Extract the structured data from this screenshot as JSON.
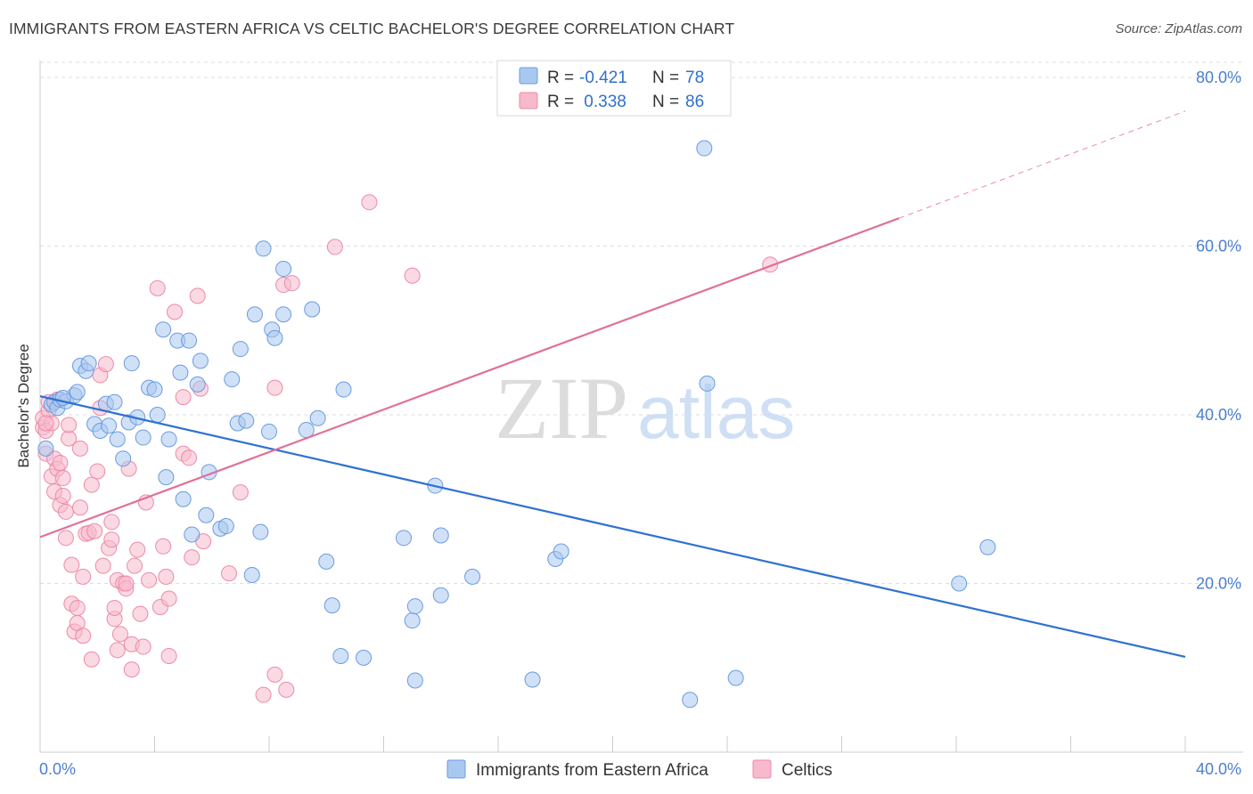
{
  "header": {
    "title": "IMMIGRANTS FROM EASTERN AFRICA VS CELTIC BACHELOR'S DEGREE CORRELATION CHART",
    "source": "Source: ZipAtlas.com"
  },
  "watermark": {
    "zip": "ZIP",
    "atlas": "atlas"
  },
  "colors": {
    "blue_fill": "#a9c8f0",
    "blue_stroke": "#6b9be0",
    "blue_line": "#2f72d0",
    "pink_fill": "#f7b9cc",
    "pink_stroke": "#ec8aa8",
    "pink_line": "#e0709a",
    "grid": "#dddddd",
    "tick_text": "#4a7fd0"
  },
  "legend_top": {
    "rows": [
      {
        "r_label": "R = ",
        "r_value": "-0.421",
        "n_label": "N = ",
        "n_value": "78"
      },
      {
        "r_label": "R = ",
        "r_value": " 0.338",
        "n_label": "N = ",
        "n_value": "86"
      }
    ]
  },
  "chart_data": {
    "type": "scatter",
    "title": "IMMIGRANTS FROM EASTERN AFRICA VS CELTIC BACHELOR'S DEGREE CORRELATION CHART",
    "xlabel": "",
    "ylabel": "Bachelor's Degree",
    "xlim": [
      0,
      40
    ],
    "ylim": [
      0,
      82
    ],
    "x_tick_labels": [
      "0.0%",
      "40.0%"
    ],
    "y_ticks": [
      20,
      40,
      60,
      80
    ],
    "y_tick_labels": [
      "20.0%",
      "40.0%",
      "60.0%",
      "80.0%"
    ],
    "grid": true,
    "legend_placement": "top-center",
    "series": [
      {
        "name": "Immigrants from Eastern Africa",
        "r": -0.421,
        "n": 78,
        "trend": {
          "x": [
            0,
            40
          ],
          "y": [
            42.2,
            11.3
          ]
        },
        "points": [
          [
            0.2,
            36.0
          ],
          [
            0.4,
            41.2
          ],
          [
            0.5,
            41.5
          ],
          [
            0.6,
            40.8
          ],
          [
            0.7,
            41.8
          ],
          [
            0.9,
            41.6
          ],
          [
            1.2,
            42.3
          ],
          [
            1.3,
            42.7
          ],
          [
            1.4,
            45.8
          ],
          [
            1.6,
            45.2
          ],
          [
            1.7,
            46.1
          ],
          [
            1.9,
            38.9
          ],
          [
            2.1,
            38.1
          ],
          [
            2.3,
            41.3
          ],
          [
            2.4,
            38.7
          ],
          [
            2.6,
            41.5
          ],
          [
            2.7,
            37.1
          ],
          [
            2.9,
            34.8
          ],
          [
            3.1,
            39.1
          ],
          [
            3.2,
            46.1
          ],
          [
            3.4,
            39.7
          ],
          [
            3.6,
            37.3
          ],
          [
            3.8,
            43.2
          ],
          [
            4.0,
            43.0
          ],
          [
            4.1,
            40.0
          ],
          [
            4.3,
            50.1
          ],
          [
            4.4,
            32.6
          ],
          [
            4.5,
            37.1
          ],
          [
            4.8,
            48.8
          ],
          [
            4.9,
            45.0
          ],
          [
            5.0,
            30.0
          ],
          [
            5.2,
            48.8
          ],
          [
            5.3,
            25.8
          ],
          [
            5.5,
            43.6
          ],
          [
            5.6,
            46.4
          ],
          [
            5.8,
            28.1
          ],
          [
            5.9,
            33.2
          ],
          [
            6.3,
            26.5
          ],
          [
            6.5,
            26.8
          ],
          [
            6.7,
            44.2
          ],
          [
            6.9,
            39.0
          ],
          [
            7.0,
            47.8
          ],
          [
            7.2,
            39.3
          ],
          [
            7.4,
            21.0
          ],
          [
            7.5,
            51.9
          ],
          [
            7.7,
            26.1
          ],
          [
            7.8,
            59.7
          ],
          [
            8.0,
            38.0
          ],
          [
            8.1,
            50.1
          ],
          [
            8.2,
            49.1
          ],
          [
            8.5,
            51.9
          ],
          [
            8.5,
            57.3
          ],
          [
            9.3,
            38.2
          ],
          [
            9.5,
            52.5
          ],
          [
            9.7,
            39.6
          ],
          [
            10.0,
            22.6
          ],
          [
            10.2,
            17.4
          ],
          [
            10.5,
            11.4
          ],
          [
            10.6,
            43.0
          ],
          [
            11.3,
            11.2
          ],
          [
            12.7,
            25.4
          ],
          [
            13.0,
            15.6
          ],
          [
            13.1,
            17.3
          ],
          [
            13.1,
            8.5
          ],
          [
            13.8,
            31.6
          ],
          [
            14.0,
            25.7
          ],
          [
            14.0,
            18.6
          ],
          [
            15.1,
            20.8
          ],
          [
            17.2,
            8.6
          ],
          [
            18.0,
            22.9
          ],
          [
            18.2,
            23.8
          ],
          [
            22.7,
            6.2
          ],
          [
            23.2,
            71.6
          ],
          [
            23.3,
            43.7
          ],
          [
            24.3,
            8.8
          ],
          [
            32.1,
            20.0
          ],
          [
            33.1,
            24.3
          ],
          [
            0.8,
            42.0
          ]
        ]
      },
      {
        "name": "Celtics",
        "r": 0.338,
        "n": 86,
        "trend": {
          "x": [
            0,
            30
          ],
          "y": [
            25.5,
            63.3
          ]
        },
        "trend_dashed": {
          "x": [
            30,
            40
          ],
          "y": [
            63.3,
            76.0
          ]
        },
        "points": [
          [
            0.1,
            38.5
          ],
          [
            0.1,
            39.6
          ],
          [
            0.2,
            35.4
          ],
          [
            0.2,
            38.1
          ],
          [
            0.3,
            40.5
          ],
          [
            0.3,
            41.5
          ],
          [
            0.4,
            32.7
          ],
          [
            0.4,
            39.0
          ],
          [
            0.5,
            34.8
          ],
          [
            0.5,
            30.9
          ],
          [
            0.6,
            33.6
          ],
          [
            0.7,
            34.3
          ],
          [
            0.7,
            29.3
          ],
          [
            0.8,
            30.4
          ],
          [
            0.8,
            32.5
          ],
          [
            0.9,
            28.5
          ],
          [
            0.9,
            25.4
          ],
          [
            1.0,
            37.2
          ],
          [
            1.0,
            38.8
          ],
          [
            1.1,
            22.2
          ],
          [
            1.1,
            17.6
          ],
          [
            1.2,
            14.3
          ],
          [
            1.3,
            15.3
          ],
          [
            1.3,
            17.1
          ],
          [
            1.4,
            29.0
          ],
          [
            1.4,
            36.0
          ],
          [
            1.5,
            20.8
          ],
          [
            1.5,
            13.8
          ],
          [
            1.6,
            25.9
          ],
          [
            1.7,
            26.0
          ],
          [
            1.8,
            11.0
          ],
          [
            1.8,
            31.7
          ],
          [
            1.9,
            26.2
          ],
          [
            2.0,
            33.3
          ],
          [
            2.1,
            40.8
          ],
          [
            2.1,
            44.7
          ],
          [
            2.2,
            22.1
          ],
          [
            2.3,
            46.0
          ],
          [
            2.4,
            24.2
          ],
          [
            2.5,
            27.3
          ],
          [
            2.5,
            25.2
          ],
          [
            2.6,
            15.8
          ],
          [
            2.6,
            17.1
          ],
          [
            2.7,
            12.1
          ],
          [
            2.7,
            20.4
          ],
          [
            2.8,
            14.0
          ],
          [
            2.9,
            20.0
          ],
          [
            3.0,
            19.4
          ],
          [
            3.0,
            20.0
          ],
          [
            3.1,
            33.6
          ],
          [
            3.2,
            12.8
          ],
          [
            3.2,
            9.8
          ],
          [
            3.3,
            22.1
          ],
          [
            3.4,
            24.0
          ],
          [
            3.5,
            16.4
          ],
          [
            3.6,
            12.5
          ],
          [
            3.7,
            29.6
          ],
          [
            3.8,
            20.4
          ],
          [
            4.1,
            55.0
          ],
          [
            4.2,
            17.2
          ],
          [
            4.3,
            24.4
          ],
          [
            4.4,
            20.8
          ],
          [
            4.5,
            18.2
          ],
          [
            4.5,
            11.4
          ],
          [
            4.7,
            52.2
          ],
          [
            5.0,
            42.1
          ],
          [
            5.0,
            35.4
          ],
          [
            5.2,
            34.9
          ],
          [
            5.3,
            23.1
          ],
          [
            5.5,
            54.1
          ],
          [
            5.6,
            43.1
          ],
          [
            5.7,
            25.0
          ],
          [
            6.6,
            21.2
          ],
          [
            7.0,
            30.8
          ],
          [
            7.8,
            6.8
          ],
          [
            8.2,
            43.2
          ],
          [
            8.2,
            9.2
          ],
          [
            8.5,
            55.4
          ],
          [
            8.6,
            7.4
          ],
          [
            8.8,
            55.6
          ],
          [
            10.3,
            59.9
          ],
          [
            11.5,
            65.2
          ],
          [
            13.0,
            56.5
          ],
          [
            25.5,
            57.8
          ],
          [
            0.2,
            39.0
          ],
          [
            0.6,
            41.8
          ]
        ]
      }
    ]
  },
  "bottom_legend": {
    "items": [
      {
        "label": "Immigrants from Eastern Africa"
      },
      {
        "label": "Celtics"
      }
    ]
  }
}
